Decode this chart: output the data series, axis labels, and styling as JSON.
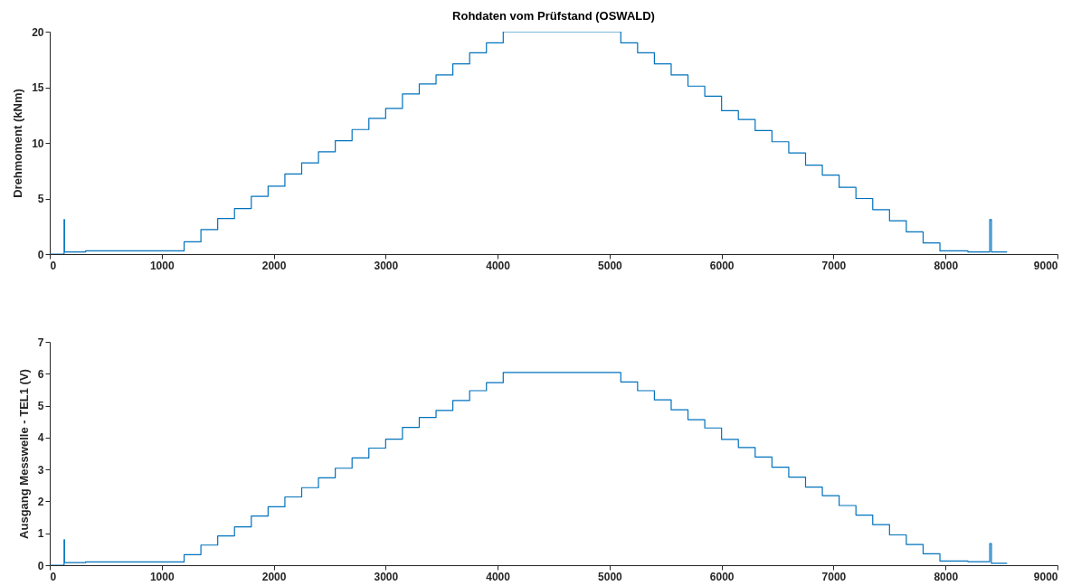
{
  "chart_data": [
    {
      "type": "step",
      "title": "Rohdaten vom Prüfstand (OSWALD)",
      "ylabel": "Drehmoment (kNm)",
      "color": "#0072bd",
      "x": [
        0,
        128,
        132,
        320,
        1200,
        1350,
        1500,
        1650,
        1800,
        1950,
        2100,
        2250,
        2400,
        2550,
        2700,
        2850,
        3000,
        3150,
        3300,
        3450,
        3600,
        3750,
        3900,
        4050,
        5100,
        5250,
        5400,
        5550,
        5700,
        5850,
        6000,
        6150,
        6300,
        6450,
        6600,
        6750,
        6900,
        7050,
        7200,
        7350,
        7500,
        7650,
        7800,
        7950,
        8200,
        8395,
        8410,
        8550
      ],
      "values": [
        0,
        3.1,
        0.2,
        0.3,
        1.1,
        2.2,
        3.2,
        4.1,
        5.2,
        6.1,
        7.2,
        8.2,
        9.2,
        10.2,
        11.2,
        12.2,
        13.1,
        14.4,
        15.3,
        16.1,
        17.1,
        18.1,
        19,
        20,
        19,
        18.1,
        17.1,
        16.1,
        15.1,
        14.2,
        12.9,
        12.1,
        11.1,
        10.1,
        9.1,
        8,
        7.1,
        6,
        5,
        4,
        3,
        2,
        1,
        0.3,
        0.2,
        3.1,
        0.2,
        0.2
      ],
      "xlim": [
        0,
        9000
      ],
      "xticks": [
        0,
        1000,
        2000,
        3000,
        4000,
        5000,
        6000,
        7000,
        8000,
        9000
      ],
      "ylim": [
        0,
        20
      ],
      "yticks": [
        0,
        5,
        10,
        15,
        20
      ]
    },
    {
      "type": "step",
      "ylabel": "Ausgang Messwelle - TEL1 (V)",
      "color": "#0072bd",
      "x": [
        0,
        128,
        132,
        320,
        1200,
        1350,
        1500,
        1650,
        1800,
        1950,
        2100,
        2250,
        2400,
        2550,
        2700,
        2850,
        3000,
        3150,
        3300,
        3450,
        3600,
        3750,
        3900,
        4050,
        5100,
        5250,
        5400,
        5550,
        5700,
        5850,
        6000,
        6150,
        6300,
        6450,
        6600,
        6750,
        6900,
        7050,
        7200,
        7350,
        7500,
        7650,
        7800,
        7950,
        8200,
        8395,
        8410,
        8550
      ],
      "values": [
        0,
        0.8,
        0.08,
        0.1,
        0.33,
        0.63,
        0.92,
        1.2,
        1.54,
        1.83,
        2.14,
        2.43,
        2.74,
        3.04,
        3.36,
        3.67,
        3.95,
        4.32,
        4.63,
        4.85,
        5.16,
        5.47,
        5.72,
        6.04,
        5.74,
        5.47,
        5.18,
        4.87,
        4.56,
        4.3,
        3.94,
        3.69,
        3.39,
        3.07,
        2.76,
        2.45,
        2.18,
        1.87,
        1.57,
        1.27,
        0.95,
        0.65,
        0.36,
        0.13,
        0.11,
        0.68,
        0.06,
        0.06
      ],
      "xlim": [
        0,
        9000
      ],
      "xticks": [
        0,
        1000,
        2000,
        3000,
        4000,
        5000,
        6000,
        7000,
        8000,
        9000
      ],
      "ylim": [
        0,
        7
      ],
      "yticks": [
        0,
        1,
        2,
        3,
        4,
        5,
        6,
        7
      ]
    }
  ]
}
